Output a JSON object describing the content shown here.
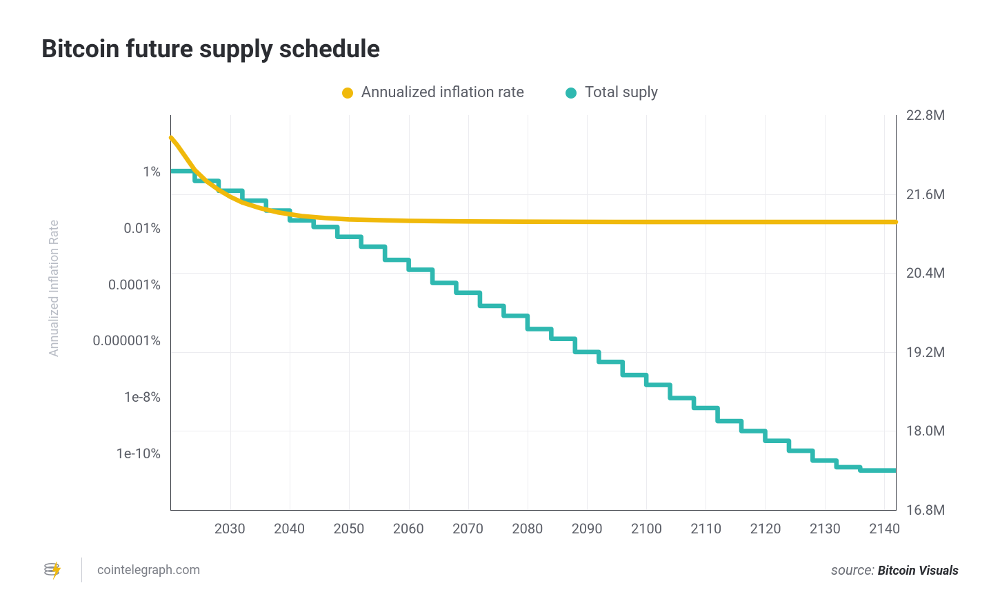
{
  "title": "Bitcoin future supply schedule",
  "legend": {
    "series1": {
      "label": "Annualized inflation rate",
      "color": "#f0b90b"
    },
    "series2": {
      "label": "Total suply",
      "color": "#2fb8b0"
    }
  },
  "chart": {
    "type": "line-dual-axis",
    "background_color": "#ffffff",
    "grid_color": "#ececf0",
    "axis_color": "#3a3d45",
    "label_color": "#5a5d66",
    "tick_fontsize": 20,
    "legend_fontsize": 22,
    "line_width": 3,
    "x": {
      "min": 2020,
      "max": 2142,
      "ticks": [
        2030,
        2040,
        2050,
        2060,
        2070,
        2080,
        2090,
        2100,
        2110,
        2120,
        2130,
        2140
      ],
      "grid_at_ticks": true
    },
    "y_left": {
      "title": "Annualized Inflation Rate",
      "title_color": "#b8bcc5",
      "title_fontsize": 18,
      "scale": "log",
      "min_exp": -12,
      "max_exp": 2,
      "ticks": [
        {
          "exp": 0,
          "label": "1%"
        },
        {
          "exp": -2,
          "label": "0.01%"
        },
        {
          "exp": -4,
          "label": "0.0001%"
        },
        {
          "exp": -6,
          "label": "0.000001%"
        },
        {
          "exp": -8,
          "label": "1e-8%"
        },
        {
          "exp": -10,
          "label": "1e-10%"
        }
      ]
    },
    "y_right": {
      "scale": "linear",
      "min": 16.8,
      "max": 22.8,
      "ticks": [
        {
          "v": 22.8,
          "label": "22.8M"
        },
        {
          "v": 21.6,
          "label": "21.6M"
        },
        {
          "v": 20.4,
          "label": "20.4M"
        },
        {
          "v": 19.2,
          "label": "19.2M"
        },
        {
          "v": 18.0,
          "label": "18.0M"
        },
        {
          "v": 16.8,
          "label": "16.8M"
        }
      ]
    },
    "series_inflation": {
      "color": "#f0b90b",
      "points_exp": [
        [
          2020,
          1.2
        ],
        [
          2021,
          0.95
        ],
        [
          2022,
          0.65
        ],
        [
          2023,
          0.35
        ],
        [
          2024,
          0.05
        ],
        [
          2026,
          -0.35
        ],
        [
          2028,
          -0.65
        ],
        [
          2030,
          -0.9
        ],
        [
          2032,
          -1.1
        ],
        [
          2035,
          -1.3
        ],
        [
          2038,
          -1.45
        ],
        [
          2042,
          -1.58
        ],
        [
          2046,
          -1.65
        ],
        [
          2050,
          -1.7
        ],
        [
          2060,
          -1.75
        ],
        [
          2070,
          -1.77
        ],
        [
          2080,
          -1.78
        ],
        [
          2100,
          -1.79
        ],
        [
          2120,
          -1.79
        ],
        [
          2142,
          -1.79
        ]
      ]
    },
    "series_supply": {
      "color": "#2fb8b0",
      "step_points": [
        [
          2020,
          21.95
        ],
        [
          2024,
          21.8
        ],
        [
          2028,
          21.65
        ],
        [
          2032,
          21.5
        ],
        [
          2036,
          21.35
        ],
        [
          2040,
          21.2
        ],
        [
          2044,
          21.1
        ],
        [
          2048,
          20.95
        ],
        [
          2052,
          20.8
        ],
        [
          2056,
          20.6
        ],
        [
          2060,
          20.45
        ],
        [
          2064,
          20.25
        ],
        [
          2068,
          20.1
        ],
        [
          2072,
          19.9
        ],
        [
          2076,
          19.75
        ],
        [
          2080,
          19.55
        ],
        [
          2084,
          19.4
        ],
        [
          2088,
          19.2
        ],
        [
          2092,
          19.05
        ],
        [
          2096,
          18.85
        ],
        [
          2100,
          18.7
        ],
        [
          2104,
          18.5
        ],
        [
          2108,
          18.35
        ],
        [
          2112,
          18.15
        ],
        [
          2116,
          18.0
        ],
        [
          2120,
          17.85
        ],
        [
          2124,
          17.7
        ],
        [
          2128,
          17.55
        ],
        [
          2132,
          17.45
        ],
        [
          2136,
          17.4
        ],
        [
          2140,
          17.4
        ],
        [
          2142,
          17.4
        ]
      ]
    }
  },
  "footer": {
    "site": "cointelegraph.com",
    "source_prefix": "source:",
    "source_name": "Bitcoin Visuals",
    "logo_colors": {
      "ring": "#8a8d95",
      "bolt": "#f0b90b"
    }
  }
}
